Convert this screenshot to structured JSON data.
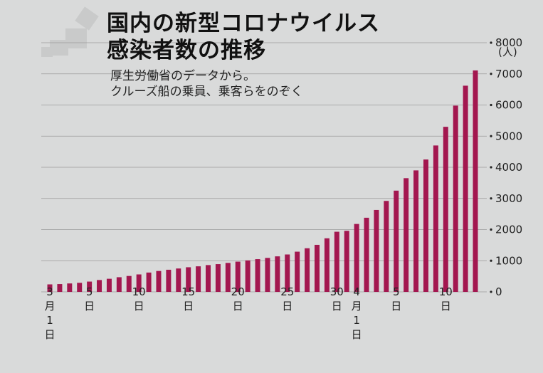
{
  "chart_data": {
    "type": "bar",
    "title_lines": [
      "国内の新型コロナウイルス",
      "感染者数の推移"
    ],
    "subtitle_lines": [
      "厚生労働省のデータから。",
      "クルーズ船の乗員、乗客らをのぞく"
    ],
    "ylabel": "(人)",
    "ylim": [
      0,
      8000
    ],
    "yticks": [
      "0",
      "1000",
      "2000",
      "3000",
      "4000",
      "5000",
      "6000",
      "7000",
      "8000"
    ],
    "grid": true,
    "bar_color": "#a3174f",
    "categories": [
      "3/1",
      "3/2",
      "3/3",
      "3/4",
      "3/5",
      "3/6",
      "3/7",
      "3/8",
      "3/9",
      "3/10",
      "3/11",
      "3/12",
      "3/13",
      "3/14",
      "3/15",
      "3/16",
      "3/17",
      "3/18",
      "3/19",
      "3/20",
      "3/21",
      "3/22",
      "3/23",
      "3/24",
      "3/25",
      "3/26",
      "3/27",
      "3/28",
      "3/29",
      "3/30",
      "3/31",
      "4/1",
      "4/2",
      "4/3",
      "4/4",
      "4/5",
      "4/6",
      "4/7",
      "4/8",
      "4/9",
      "4/10",
      "4/11",
      "4/12",
      "4/13"
    ],
    "values": [
      240,
      250,
      270,
      290,
      330,
      380,
      420,
      470,
      510,
      560,
      620,
      670,
      710,
      750,
      790,
      820,
      860,
      890,
      930,
      970,
      1010,
      1050,
      1090,
      1140,
      1200,
      1290,
      1400,
      1510,
      1720,
      1930,
      1960,
      2180,
      2380,
      2630,
      2920,
      3250,
      3650,
      3900,
      4250,
      4700,
      5300,
      5980,
      6620,
      7110
    ],
    "xtick_labels": [
      {
        "index": 0,
        "lines": [
          "3",
          "月",
          "1",
          "日"
        ]
      },
      {
        "index": 4,
        "lines": [
          "5",
          "日"
        ]
      },
      {
        "index": 9,
        "lines": [
          "10",
          "日"
        ]
      },
      {
        "index": 14,
        "lines": [
          "15",
          "日"
        ]
      },
      {
        "index": 19,
        "lines": [
          "20",
          "日"
        ]
      },
      {
        "index": 24,
        "lines": [
          "25",
          "日"
        ]
      },
      {
        "index": 29,
        "lines": [
          "30",
          "日"
        ]
      },
      {
        "index": 31,
        "lines": [
          "4",
          "月",
          "1",
          "日"
        ]
      },
      {
        "index": 35,
        "lines": [
          "5",
          "日"
        ]
      },
      {
        "index": 40,
        "lines": [
          "10",
          "日"
        ]
      }
    ]
  }
}
